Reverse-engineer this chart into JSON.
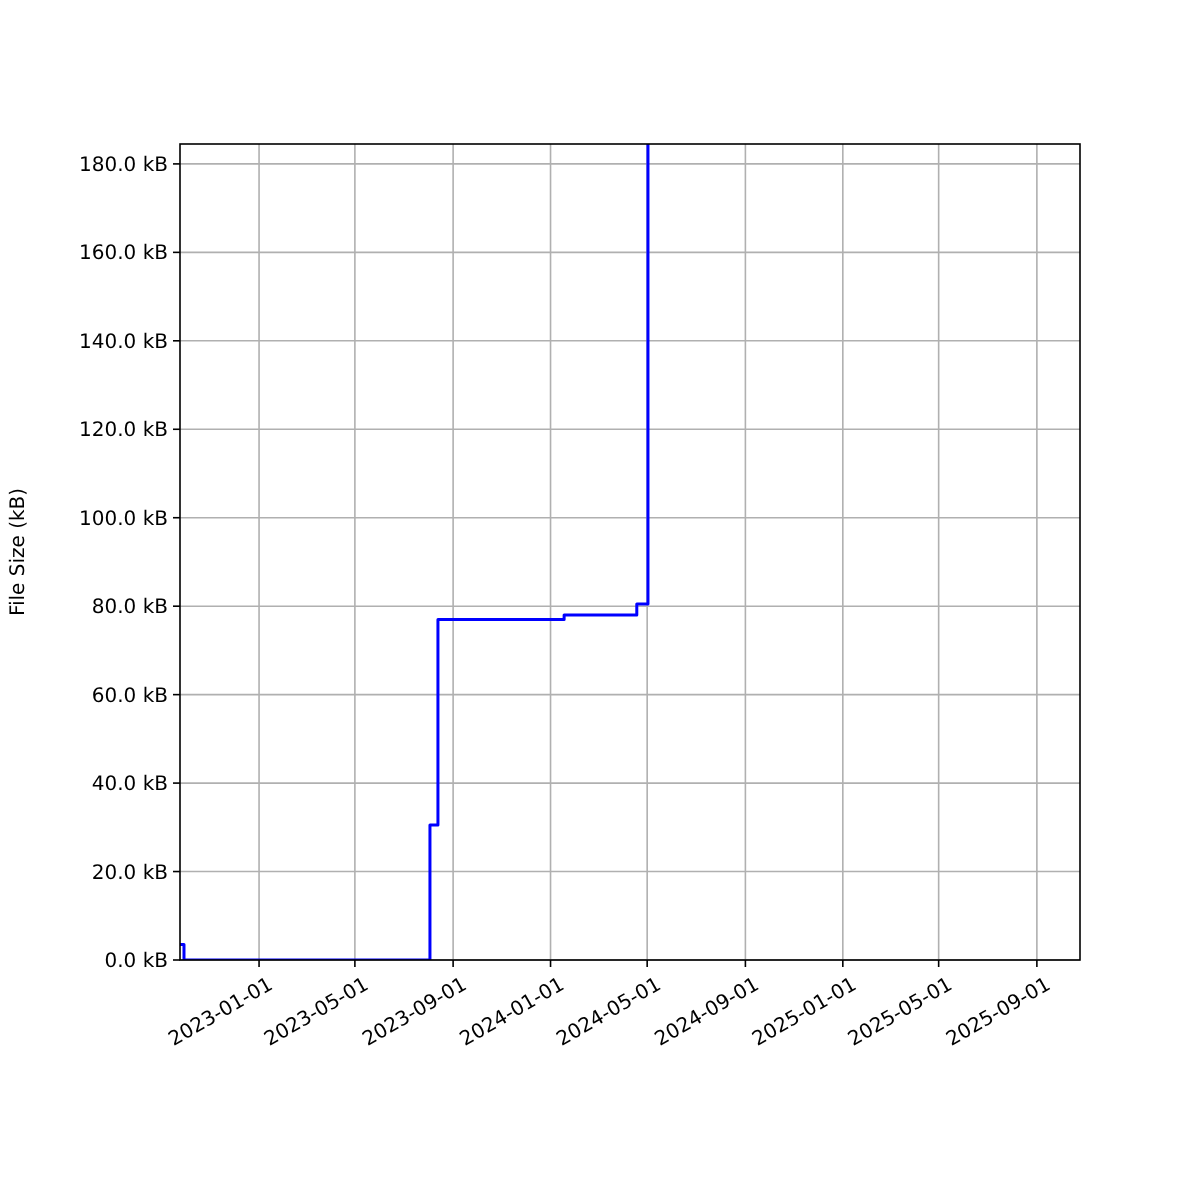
{
  "chart_data": {
    "type": "step",
    "ylabel": "File Size (kB)",
    "x": [
      "2022-09-24",
      "2022-09-29",
      "2023-08-03",
      "2023-08-13",
      "2024-01-18",
      "2024-04-18",
      "2024-05-02"
    ],
    "series": [
      {
        "color": "#0000ff",
        "values": [
          3.5,
          0,
          30.5,
          77,
          78,
          80.5,
          184.5
        ]
      }
    ],
    "xlim": [
      "2022-09-24",
      "2025-10-25"
    ],
    "xticks": [
      "2023-01-01",
      "2023-05-01",
      "2023-09-01",
      "2024-01-01",
      "2024-05-01",
      "2024-09-01",
      "2025-01-01",
      "2025-05-01",
      "2025-09-01"
    ],
    "ylim": [
      0,
      184.5
    ],
    "yticks": [
      {
        "value": 0,
        "label": "0.0 kB"
      },
      {
        "value": 20,
        "label": "20.0 kB"
      },
      {
        "value": 40,
        "label": "40.0 kB"
      },
      {
        "value": 60,
        "label": "60.0 kB"
      },
      {
        "value": 80,
        "label": "80.0 kB"
      },
      {
        "value": 100,
        "label": "100.0 kB"
      },
      {
        "value": 120,
        "label": "120.0 kB"
      },
      {
        "value": 140,
        "label": "140.0 kB"
      },
      {
        "value": 160,
        "label": "160.0 kB"
      },
      {
        "value": 180,
        "label": "180.0 kB"
      }
    ],
    "grid": true,
    "marker": "none",
    "line_style": "solid"
  }
}
